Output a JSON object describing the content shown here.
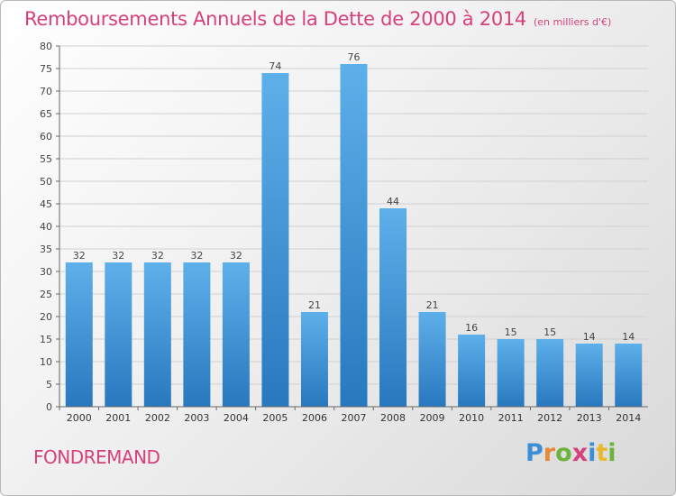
{
  "title": "Remboursements Annuels de la Dette de 2000 à 2014",
  "unit": "(en milliers d'€)",
  "commune": "FONDREMAND",
  "logo": {
    "letters": [
      {
        "char": "P",
        "color": "#3b8fd6"
      },
      {
        "char": "r",
        "color": "#e8883a"
      },
      {
        "char": "o",
        "color": "#6bb33c"
      },
      {
        "char": "x",
        "color": "#d6407d"
      },
      {
        "char": "i",
        "color": "#3b8fd6"
      },
      {
        "char": "t",
        "color": "#e8b92f"
      },
      {
        "char": "i",
        "color": "#6bb33c"
      }
    ]
  },
  "chart_data": {
    "type": "bar",
    "categories": [
      "2000",
      "2001",
      "2002",
      "2003",
      "2004",
      "2005",
      "2006",
      "2007",
      "2008",
      "2009",
      "2010",
      "2011",
      "2012",
      "2013",
      "2014"
    ],
    "values": [
      32,
      32,
      32,
      32,
      32,
      74,
      21,
      76,
      44,
      21,
      16,
      15,
      15,
      14,
      14
    ],
    "title": "Remboursements Annuels de la Dette de 2000 à 2014",
    "ylim": [
      0,
      80
    ],
    "yticks": [
      0,
      5,
      10,
      15,
      20,
      25,
      30,
      35,
      40,
      45,
      50,
      55,
      60,
      65,
      70,
      75,
      80
    ],
    "grid": true,
    "bar_color_top": "#5eb0ea",
    "bar_color_bottom": "#2878bf"
  }
}
